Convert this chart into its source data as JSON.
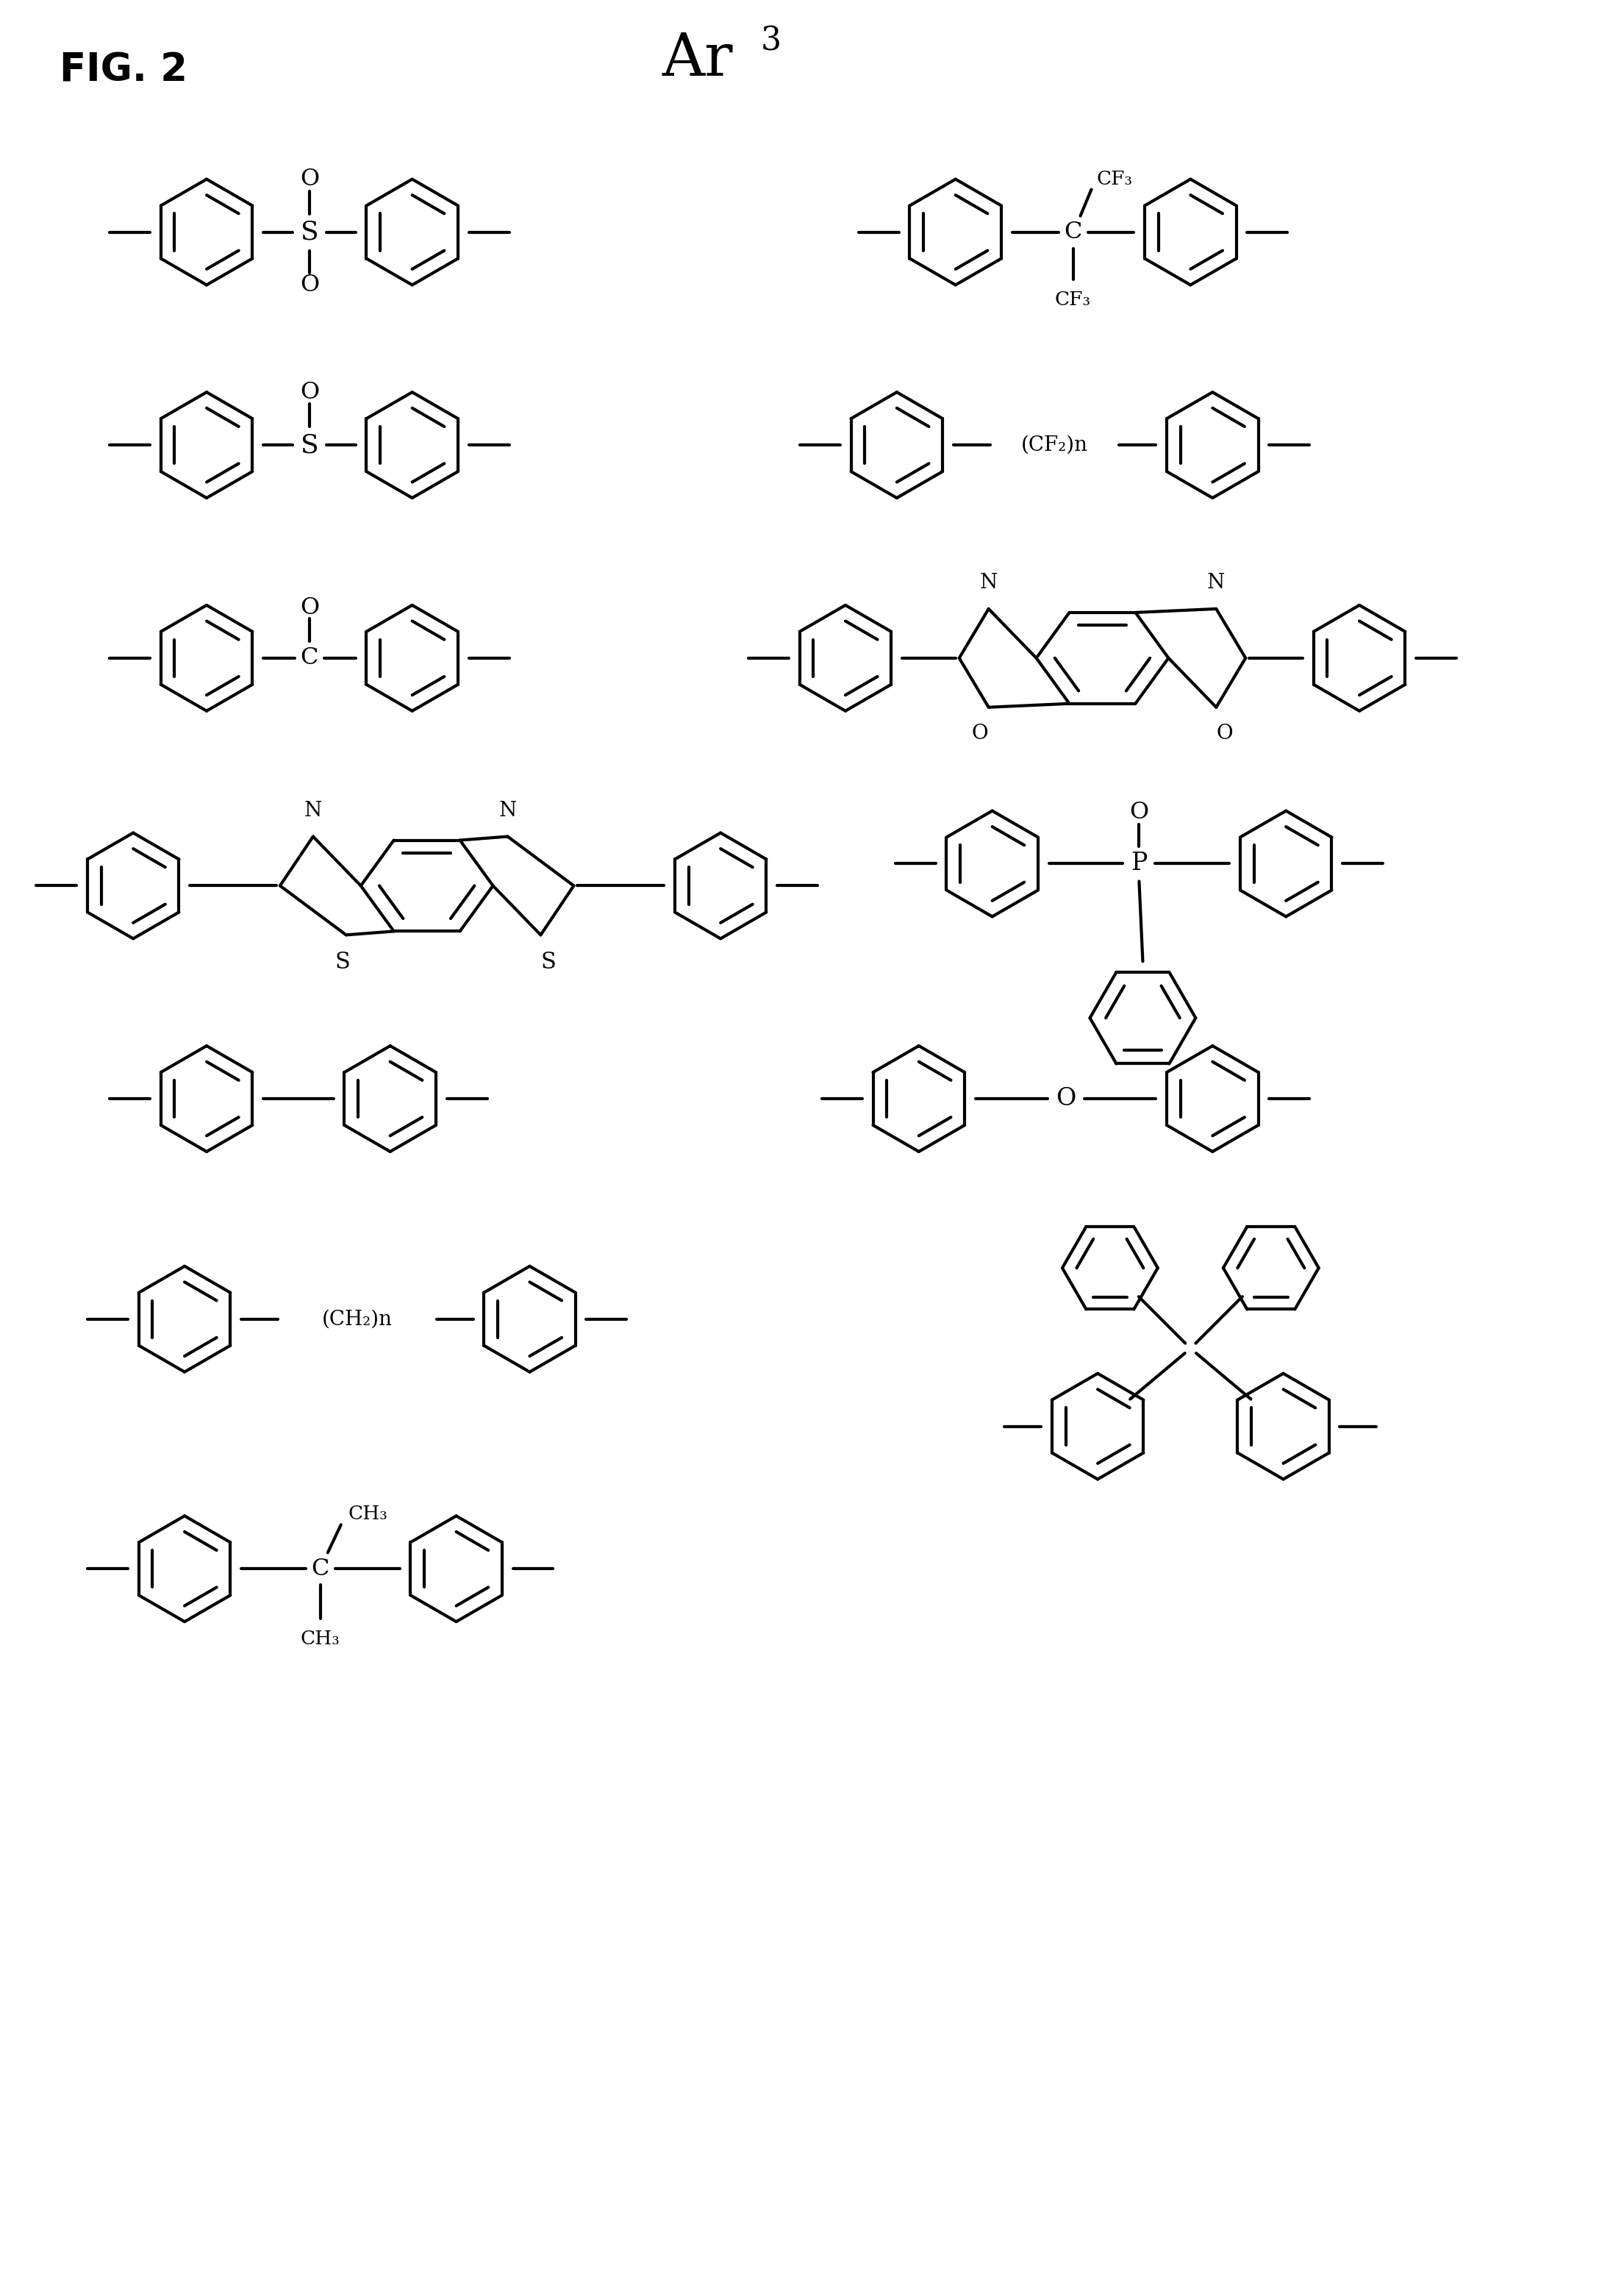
{
  "background_color": "#ffffff",
  "line_color": "#000000",
  "line_width": 3.0,
  "page_width": 22.09,
  "page_height": 31.14,
  "fig_label": "FIG. 2",
  "title": "Ar",
  "title_superscript": "3",
  "font_size_title": 58,
  "font_size_label": 38,
  "font_size_chem": 20
}
